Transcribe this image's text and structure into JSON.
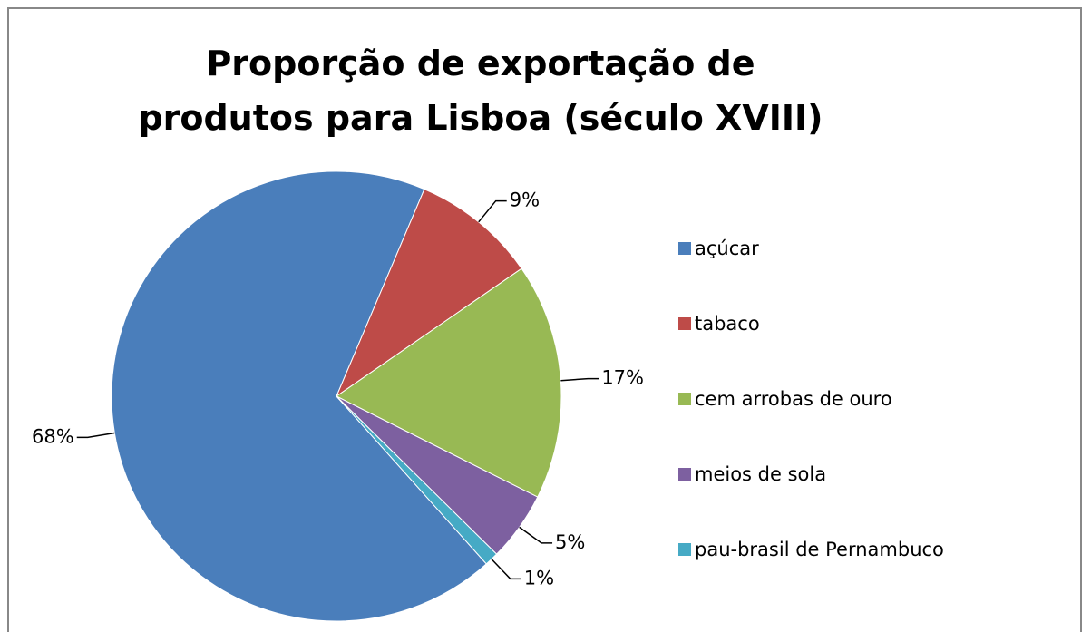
{
  "chart_data": {
    "type": "pie",
    "title": "Proporção de exportação de produtos para Lisboa (século XVIII)",
    "categories": [
      "açúcar",
      "tabaco",
      "cem arrobas de ouro",
      "meios de sola",
      "pau-brasil de Pernambuco"
    ],
    "values": [
      68,
      9,
      17,
      5,
      1
    ],
    "value_labels": [
      "68%",
      "9%",
      "17%",
      "5%",
      "1%"
    ],
    "colors": [
      "#4a7ebb",
      "#be4b48",
      "#98b954",
      "#7d60a0",
      "#46aac5"
    ],
    "legend": "right"
  }
}
